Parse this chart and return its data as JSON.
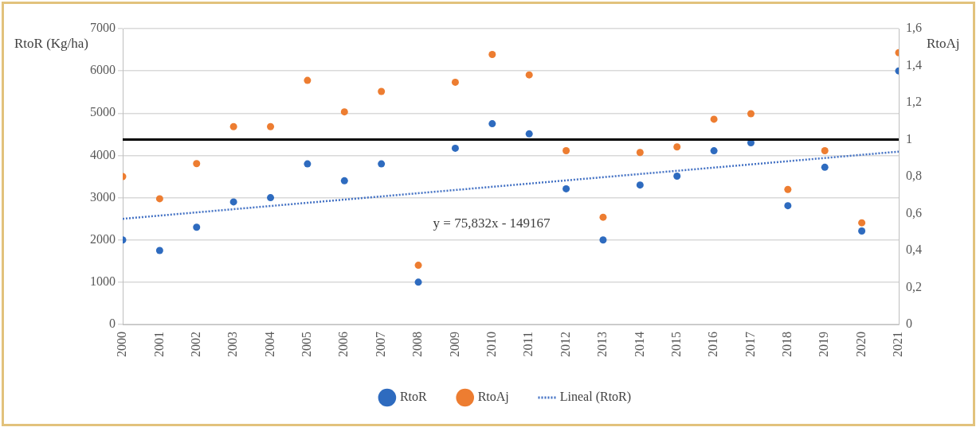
{
  "chart_data": {
    "type": "scatter",
    "ylabel": "RtoR (Kg/ha)",
    "y2label": "RtoAj",
    "x": [
      2000,
      2001,
      2002,
      2003,
      2004,
      2005,
      2006,
      2007,
      2008,
      2009,
      2010,
      2011,
      2012,
      2013,
      2014,
      2015,
      2016,
      2017,
      2018,
      2019,
      2020,
      2021
    ],
    "series": [
      {
        "name": "RtoR",
        "color": "#2e6bbf",
        "values": [
          2000,
          1750,
          2300,
          2900,
          3000,
          3800,
          3400,
          3800,
          1000,
          4170,
          4750,
          4510,
          3210,
          2000,
          3300,
          3510,
          4110,
          4300,
          2810,
          3720,
          2210,
          6000
        ]
      },
      {
        "name": "RtoAj",
        "color": "#ed7d31",
        "axis": "y2",
        "values": [
          0.8,
          0.68,
          0.87,
          1.07,
          1.07,
          1.32,
          1.15,
          1.26,
          0.32,
          1.31,
          1.46,
          1.35,
          0.94,
          0.58,
          0.93,
          0.96,
          1.11,
          1.14,
          0.73,
          0.94,
          0.55,
          1.47
        ]
      },
      {
        "name": "Lineal (RtoR)",
        "type": "line",
        "color": "#4472c4",
        "line_style": "dotted",
        "marker": "none",
        "x": [
          2000,
          2021
        ],
        "values": [
          2500,
          4090
        ]
      }
    ],
    "xlim": [
      2000,
      2021
    ],
    "xticks": [
      2000,
      2001,
      2002,
      2003,
      2004,
      2005,
      2006,
      2007,
      2008,
      2009,
      2010,
      2011,
      2012,
      2013,
      2014,
      2015,
      2016,
      2017,
      2018,
      2019,
      2020,
      2021
    ],
    "ylim": [
      0,
      7000
    ],
    "yticks": [
      0,
      1000,
      2000,
      3000,
      4000,
      5000,
      6000,
      7000
    ],
    "y2lim": [
      0,
      1.6
    ],
    "y2ticks": [
      0,
      {
        "value": 0.2,
        "label": "0,2"
      },
      {
        "value": 0.4,
        "label": "0,4"
      },
      {
        "value": 0.6,
        "label": "0,6"
      },
      {
        "value": 0.8,
        "label": "0,8"
      },
      1,
      {
        "value": 1.2,
        "label": "1,2"
      },
      {
        "value": 1.4,
        "label": "1,4"
      },
      {
        "value": 1.6,
        "label": "1,6"
      }
    ],
    "ref_lines": [
      {
        "axis": "y2",
        "value": 1,
        "color": "#000000"
      }
    ],
    "annotations": [
      "y = 75,832x - 149167"
    ],
    "grid": "y",
    "legend": "bottom",
    "marker": "circle"
  }
}
